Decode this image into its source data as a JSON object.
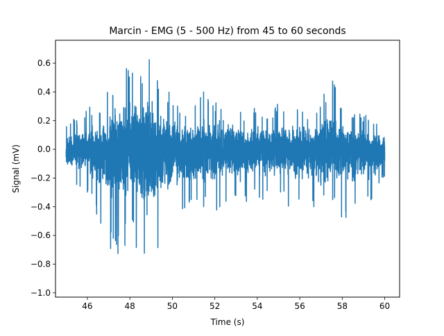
{
  "chart_data": {
    "type": "line",
    "title": "Marcin - EMG (5 - 500 Hz) from 45 to 60 seconds",
    "xlabel": "Time (s)",
    "ylabel": "Signal (mV)",
    "xlim": [
      44.5,
      60.7
    ],
    "ylim": [
      -1.03,
      0.76
    ],
    "x_ticks": [
      46,
      48,
      50,
      52,
      54,
      56,
      58,
      60
    ],
    "x_tick_labels": [
      "46",
      "48",
      "50",
      "52",
      "54",
      "56",
      "58",
      "60"
    ],
    "y_ticks": [
      -1.0,
      -0.8,
      -0.6,
      -0.4,
      -0.2,
      0.0,
      0.2,
      0.4,
      0.6
    ],
    "y_tick_labels": [
      "−1.0",
      "−0.8",
      "−0.6",
      "−0.4",
      "−0.2",
      "0.0",
      "0.2",
      "0.4",
      "0.6"
    ],
    "grid": false,
    "series": [
      {
        "color": "#1f77b4",
        "x_start": 45.0,
        "x_end": 60.0,
        "envelope": [
          {
            "t": 45.0,
            "max": 0.18,
            "min": -0.25
          },
          {
            "t": 45.5,
            "max": 0.22,
            "min": -0.28
          },
          {
            "t": 46.0,
            "max": 0.3,
            "min": -0.3
          },
          {
            "t": 46.5,
            "max": 0.28,
            "min": -0.5
          },
          {
            "t": 47.0,
            "max": 0.42,
            "min": -0.65
          },
          {
            "t": 47.3,
            "max": 0.48,
            "min": -0.8
          },
          {
            "t": 47.7,
            "max": 0.55,
            "min": -0.72
          },
          {
            "t": 48.0,
            "max": 0.63,
            "min": -0.6
          },
          {
            "t": 48.5,
            "max": 0.58,
            "min": -0.75
          },
          {
            "t": 49.0,
            "max": 0.68,
            "min": -0.92
          },
          {
            "t": 49.5,
            "max": 0.48,
            "min": -0.65
          },
          {
            "t": 50.0,
            "max": 0.4,
            "min": -0.45
          },
          {
            "t": 50.5,
            "max": 0.3,
            "min": -0.5
          },
          {
            "t": 51.0,
            "max": 0.28,
            "min": -0.42
          },
          {
            "t": 51.5,
            "max": 0.45,
            "min": -0.4
          },
          {
            "t": 52.0,
            "max": 0.33,
            "min": -0.45
          },
          {
            "t": 52.5,
            "max": 0.38,
            "min": -0.38
          },
          {
            "t": 53.0,
            "max": 0.3,
            "min": -0.4
          },
          {
            "t": 53.5,
            "max": 0.25,
            "min": -0.38
          },
          {
            "t": 54.0,
            "max": 0.3,
            "min": -0.35
          },
          {
            "t": 54.5,
            "max": 0.22,
            "min": -0.38
          },
          {
            "t": 55.0,
            "max": 0.35,
            "min": -0.35
          },
          {
            "t": 55.5,
            "max": 0.28,
            "min": -0.4
          },
          {
            "t": 56.0,
            "max": 0.3,
            "min": -0.45
          },
          {
            "t": 56.5,
            "max": 0.25,
            "min": -0.38
          },
          {
            "t": 57.0,
            "max": 0.35,
            "min": -0.45
          },
          {
            "t": 57.5,
            "max": 0.53,
            "min": -0.35
          },
          {
            "t": 58.0,
            "max": 0.3,
            "min": -0.5
          },
          {
            "t": 58.5,
            "max": 0.24,
            "min": -0.45
          },
          {
            "t": 59.0,
            "max": 0.25,
            "min": -0.4
          },
          {
            "t": 59.5,
            "max": 0.22,
            "min": -0.35
          },
          {
            "t": 60.0,
            "max": 0.2,
            "min": -0.2
          }
        ]
      }
    ]
  }
}
